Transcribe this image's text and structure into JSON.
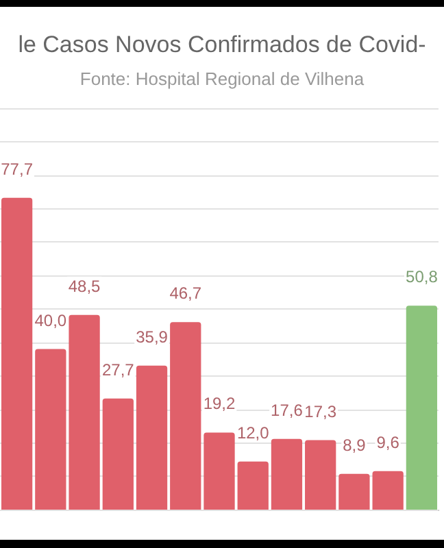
{
  "chart_data": {
    "type": "bar",
    "title": "le Casos Novos Confirmados de Covid-",
    "subtitle": "Fonte: Hospital Regional de Vilhena",
    "categories": [
      null,
      null,
      null,
      null,
      null,
      null,
      null,
      null,
      null,
      null,
      null,
      null,
      null
    ],
    "values": [
      77.7,
      40.0,
      48.5,
      27.7,
      35.9,
      46.7,
      19.2,
      12.0,
      17.6,
      17.3,
      8.9,
      9.6,
      50.8
    ],
    "colors": [
      "#e0606a",
      "#e0606a",
      "#e0606a",
      "#e0606a",
      "#e0606a",
      "#e0606a",
      "#e0606a",
      "#e0606a",
      "#e0606a",
      "#e0606a",
      "#e0606a",
      "#e0606a",
      "#8cc47c"
    ],
    "value_labels": [
      "77,7",
      "40,0",
      "48,5",
      "27,7",
      "35,9",
      "46,7",
      "19,2",
      "12,0",
      "17,6",
      "17,3",
      "8,9",
      "9,6",
      "50,8"
    ],
    "ylim": [
      0,
      100
    ],
    "yticks": [
      {
        "value": 0,
        "label": null
      },
      {
        "value": 8.3,
        "label": null
      },
      {
        "value": 16.7,
        "label": null
      },
      {
        "value": 25,
        "label": null
      },
      {
        "value": 33.3,
        "label": null
      },
      {
        "value": 41.7,
        "label": null
      },
      {
        "value": 50,
        "label": null
      },
      {
        "value": 58.3,
        "label": null
      },
      {
        "value": 66.7,
        "label": null
      },
      {
        "value": 75,
        "label": null
      },
      {
        "value": 83.3,
        "label": null
      },
      {
        "value": 91.7,
        "label": null
      },
      {
        "value": 100,
        "label": null
      }
    ],
    "grid": "y",
    "tick_labels": false
  }
}
